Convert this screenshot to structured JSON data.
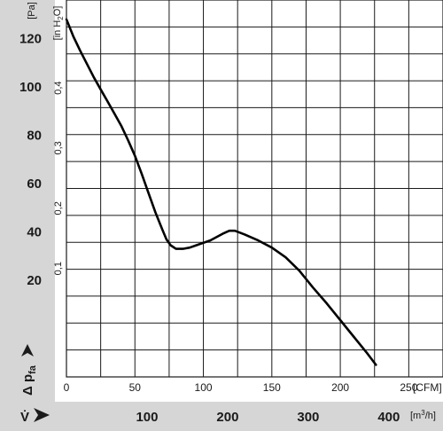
{
  "chart_data": {
    "type": "line",
    "series": [
      {
        "points_cfm_pa": [
          [
            0,
            128
          ],
          [
            5,
            121
          ],
          [
            10,
            115
          ],
          [
            15,
            109.5
          ],
          [
            20,
            104
          ],
          [
            25,
            99
          ],
          [
            30,
            94
          ],
          [
            35,
            89
          ],
          [
            40,
            84
          ],
          [
            45,
            78
          ],
          [
            50,
            71.5
          ],
          [
            55,
            64
          ],
          [
            60,
            56
          ],
          [
            65,
            48
          ],
          [
            70,
            41
          ],
          [
            73,
            37
          ],
          [
            76,
            34.5
          ],
          [
            80,
            33
          ],
          [
            85,
            33
          ],
          [
            90,
            33.5
          ],
          [
            95,
            34.5
          ],
          [
            100,
            35.5
          ],
          [
            105,
            36.5
          ],
          [
            110,
            38
          ],
          [
            115,
            39.5
          ],
          [
            119,
            40.5
          ],
          [
            123,
            40.5
          ],
          [
            130,
            39
          ],
          [
            140,
            36.5
          ],
          [
            150,
            33.5
          ],
          [
            160,
            29.5
          ],
          [
            170,
            24
          ],
          [
            180,
            17
          ],
          [
            190,
            10.5
          ],
          [
            200,
            3.5
          ],
          [
            210,
            -3.5
          ],
          [
            220,
            -10.5
          ],
          [
            226,
            -15
          ]
        ]
      }
    ],
    "pa_axis": {
      "unit": "[Pa]",
      "ticks": [
        "20",
        "40",
        "60",
        "80",
        "100",
        "120"
      ],
      "range": [
        -20,
        136
      ]
    },
    "inh2o_axis": {
      "unit": "[in H₂O]",
      "ticks": [
        "0,1",
        "0,2",
        "0,3",
        "0,4"
      ]
    },
    "cfm_axis": {
      "unit": "[CFM]",
      "ticks": [
        "0",
        "50",
        "100",
        "150",
        "200",
        "250"
      ],
      "range": [
        0,
        275
      ]
    },
    "m3h_axis": {
      "unit": "[m³/h]",
      "ticks": [
        "100",
        "200",
        "300",
        "400"
      ]
    },
    "ylabel_symbol": "Δ p",
    "ylabel_sub": "fa",
    "xlabel_symbol": "V̇",
    "grid": true,
    "colors": {
      "gutter": "#d6d6d6",
      "grid": "#1a1a1a",
      "curve": "#000000"
    }
  }
}
